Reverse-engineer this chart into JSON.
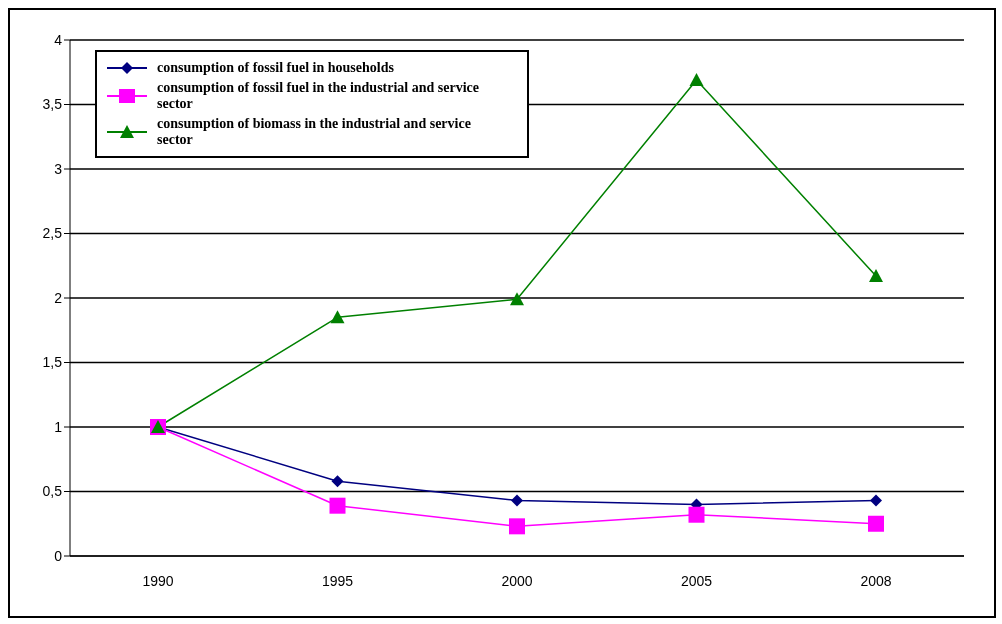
{
  "chart_data": {
    "type": "line",
    "categories": [
      "1990",
      "1995",
      "2000",
      "2005",
      "2008"
    ],
    "series": [
      {
        "name": "consumption of fossil fuel in households",
        "color": "#000080",
        "marker": "diamond",
        "values": [
          1,
          0.58,
          0.43,
          0.4,
          0.43
        ]
      },
      {
        "name": "consumption of fossil fuel in the industrial and service sector",
        "color": "#ff00ff",
        "marker": "square",
        "values": [
          1,
          0.39,
          0.23,
          0.32,
          0.25
        ]
      },
      {
        "name": "consumption of biomass in the industrial and service sector",
        "color": "#008000",
        "marker": "triangle",
        "values": [
          1,
          1.85,
          1.99,
          3.69,
          2.17
        ]
      }
    ],
    "ylim": [
      0,
      4
    ],
    "yticks": [
      0,
      {
        "value": 0.5,
        "label": "0,5"
      },
      1,
      {
        "value": 1.5,
        "label": "1,5"
      },
      2,
      {
        "value": 2.5,
        "label": "2,5"
      },
      3,
      {
        "value": 3.5,
        "label": "3,5"
      },
      4
    ],
    "grid": "y",
    "legend": "top left"
  }
}
